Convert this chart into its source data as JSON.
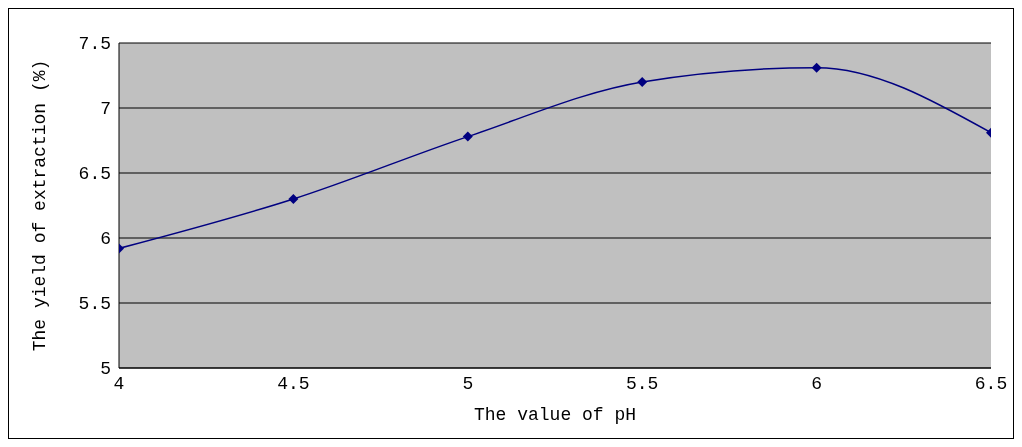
{
  "chart_data": {
    "type": "line",
    "xlabel": "The value of pH",
    "ylabel": "The yield of extraction (%)",
    "x": [
      4,
      4.5,
      5,
      5.5,
      6,
      6.5
    ],
    "series": [
      {
        "color": "#000080",
        "values": [
          5.92,
          6.3,
          6.78,
          7.2,
          7.31,
          6.81
        ]
      }
    ],
    "xlim": [
      4,
      6.5
    ],
    "xticks": [
      4,
      4.5,
      5,
      5.5,
      6,
      6.5
    ],
    "ylim": [
      5,
      7.5
    ],
    "yticks": [
      5,
      5.5,
      6,
      6.5,
      7,
      7.5
    ],
    "grid": "y",
    "marker": "diamond",
    "line_style": "solid",
    "legend": false
  }
}
